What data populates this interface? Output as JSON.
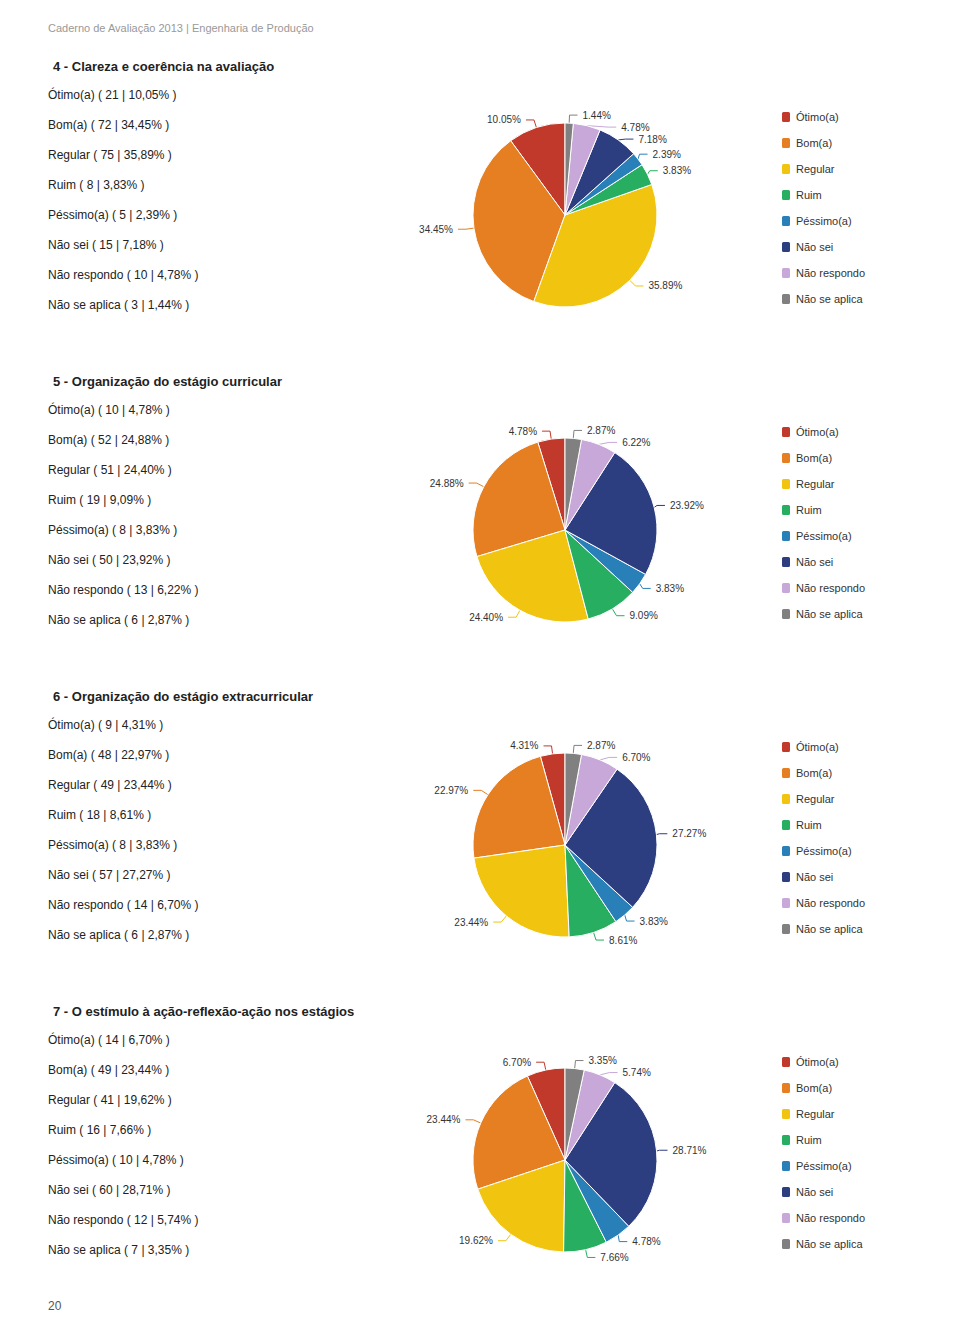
{
  "annotations": [
    "Caderno de Avaliação 2013 | Engenharia de Produção",
    "20"
  ],
  "chart_data": [
    {
      "type": "pie",
      "title": "4 - Clareza e coerência na avaliação",
      "categories": [
        "Ótimo(a)",
        "Bom(a)",
        "Regular",
        "Ruim",
        "Péssimo(a)",
        "Não sei",
        "Não respondo",
        "Não se aplica"
      ],
      "values": [
        10.05,
        34.45,
        35.89,
        3.83,
        2.39,
        7.18,
        4.78,
        1.44
      ],
      "value_labels": [
        "10.05%",
        "34.45%",
        "35.89%",
        "3.83%",
        "2.39%",
        "7.18%",
        "4.78%",
        "1.44%"
      ],
      "colors": [
        "#c0392b",
        "#e67e22",
        "#f1c40f",
        "#27ae60",
        "#2980b9",
        "#2c3e80",
        "#c8a8d8",
        "#808080"
      ],
      "data_labels": true,
      "legend": "right",
      "annotations": [
        "Ótimo(a) ( 21 | 10,05% )",
        "Bom(a) ( 72 | 34,45% )",
        "Regular ( 75 | 35,89% )",
        "Ruim ( 8 | 3,83% )",
        "Péssimo(a) ( 5 | 2,39% )",
        "Não sei ( 15 | 7,18% )",
        "Não respondo ( 10 | 4,78% )",
        "Não se aplica ( 3 | 1,44% )"
      ]
    },
    {
      "type": "pie",
      "title": "5 - Organização do estágio curricular",
      "categories": [
        "Ótimo(a)",
        "Bom(a)",
        "Regular",
        "Ruim",
        "Péssimo(a)",
        "Não sei",
        "Não respondo",
        "Não se aplica"
      ],
      "values": [
        4.78,
        24.88,
        24.4,
        9.09,
        3.83,
        23.92,
        6.22,
        2.87
      ],
      "value_labels": [
        "4.78%",
        "24.88%",
        "24.40%",
        "9.09%",
        "3.83%",
        "23.92%",
        "6.22%",
        "2.87%"
      ],
      "colors": [
        "#c0392b",
        "#e67e22",
        "#f1c40f",
        "#27ae60",
        "#2980b9",
        "#2c3e80",
        "#c8a8d8",
        "#808080"
      ],
      "data_labels": true,
      "legend": "right",
      "annotations": [
        "Ótimo(a) ( 10 | 4,78% )",
        "Bom(a) ( 52 | 24,88% )",
        "Regular ( 51 | 24,40% )",
        "Ruim ( 19 | 9,09% )",
        "Péssimo(a) ( 8 | 3,83% )",
        "Não sei ( 50 | 23,92% )",
        "Não respondo ( 13 | 6,22% )",
        "Não se aplica ( 6 | 2,87% )"
      ]
    },
    {
      "type": "pie",
      "title": "6 - Organização do estágio extracurricular",
      "categories": [
        "Ótimo(a)",
        "Bom(a)",
        "Regular",
        "Ruim",
        "Péssimo(a)",
        "Não sei",
        "Não respondo",
        "Não se aplica"
      ],
      "values": [
        4.31,
        22.97,
        23.44,
        8.61,
        3.83,
        27.27,
        6.7,
        2.87
      ],
      "value_labels": [
        "4.31%",
        "22.97%",
        "23.44%",
        "8.61%",
        "3.83%",
        "27.27%",
        "6.70%",
        "2.87%"
      ],
      "colors": [
        "#c0392b",
        "#e67e22",
        "#f1c40f",
        "#27ae60",
        "#2980b9",
        "#2c3e80",
        "#c8a8d8",
        "#808080"
      ],
      "data_labels": true,
      "legend": "right",
      "annotations": [
        "Ótimo(a) ( 9 | 4,31% )",
        "Bom(a) ( 48 | 22,97% )",
        "Regular ( 49 | 23,44% )",
        "Ruim ( 18 | 8,61% )",
        "Péssimo(a) ( 8 | 3,83% )",
        "Não sei ( 57 | 27,27% )",
        "Não respondo ( 14 | 6,70% )",
        "Não se aplica ( 6 | 2,87% )"
      ]
    },
    {
      "type": "pie",
      "title": "7 - O estímulo à ação-reflexão-ação nos estágios",
      "categories": [
        "Ótimo(a)",
        "Bom(a)",
        "Regular",
        "Ruim",
        "Péssimo(a)",
        "Não sei",
        "Não respondo",
        "Não se aplica"
      ],
      "values": [
        6.7,
        23.44,
        19.62,
        7.66,
        4.78,
        28.71,
        5.74,
        3.35
      ],
      "value_labels": [
        "6.70%",
        "23.44%",
        "19.62%",
        "7.66%",
        "4.78%",
        "28.71%",
        "5.74%",
        "3.35%"
      ],
      "colors": [
        "#c0392b",
        "#e67e22",
        "#f1c40f",
        "#27ae60",
        "#2980b9",
        "#2c3e80",
        "#c8a8d8",
        "#808080"
      ],
      "data_labels": true,
      "legend": "right",
      "annotations": [
        "Ótimo(a) ( 14 | 6,70% )",
        "Bom(a) ( 49 | 23,44% )",
        "Regular ( 41 | 19,62% )",
        "Ruim ( 16 | 7,66% )",
        "Péssimo(a) ( 10 | 4,78% )",
        "Não sei ( 60 | 28,71% )",
        "Não respondo ( 12 | 5,74% )",
        "Não se aplica ( 7 | 3,35% )"
      ]
    }
  ]
}
